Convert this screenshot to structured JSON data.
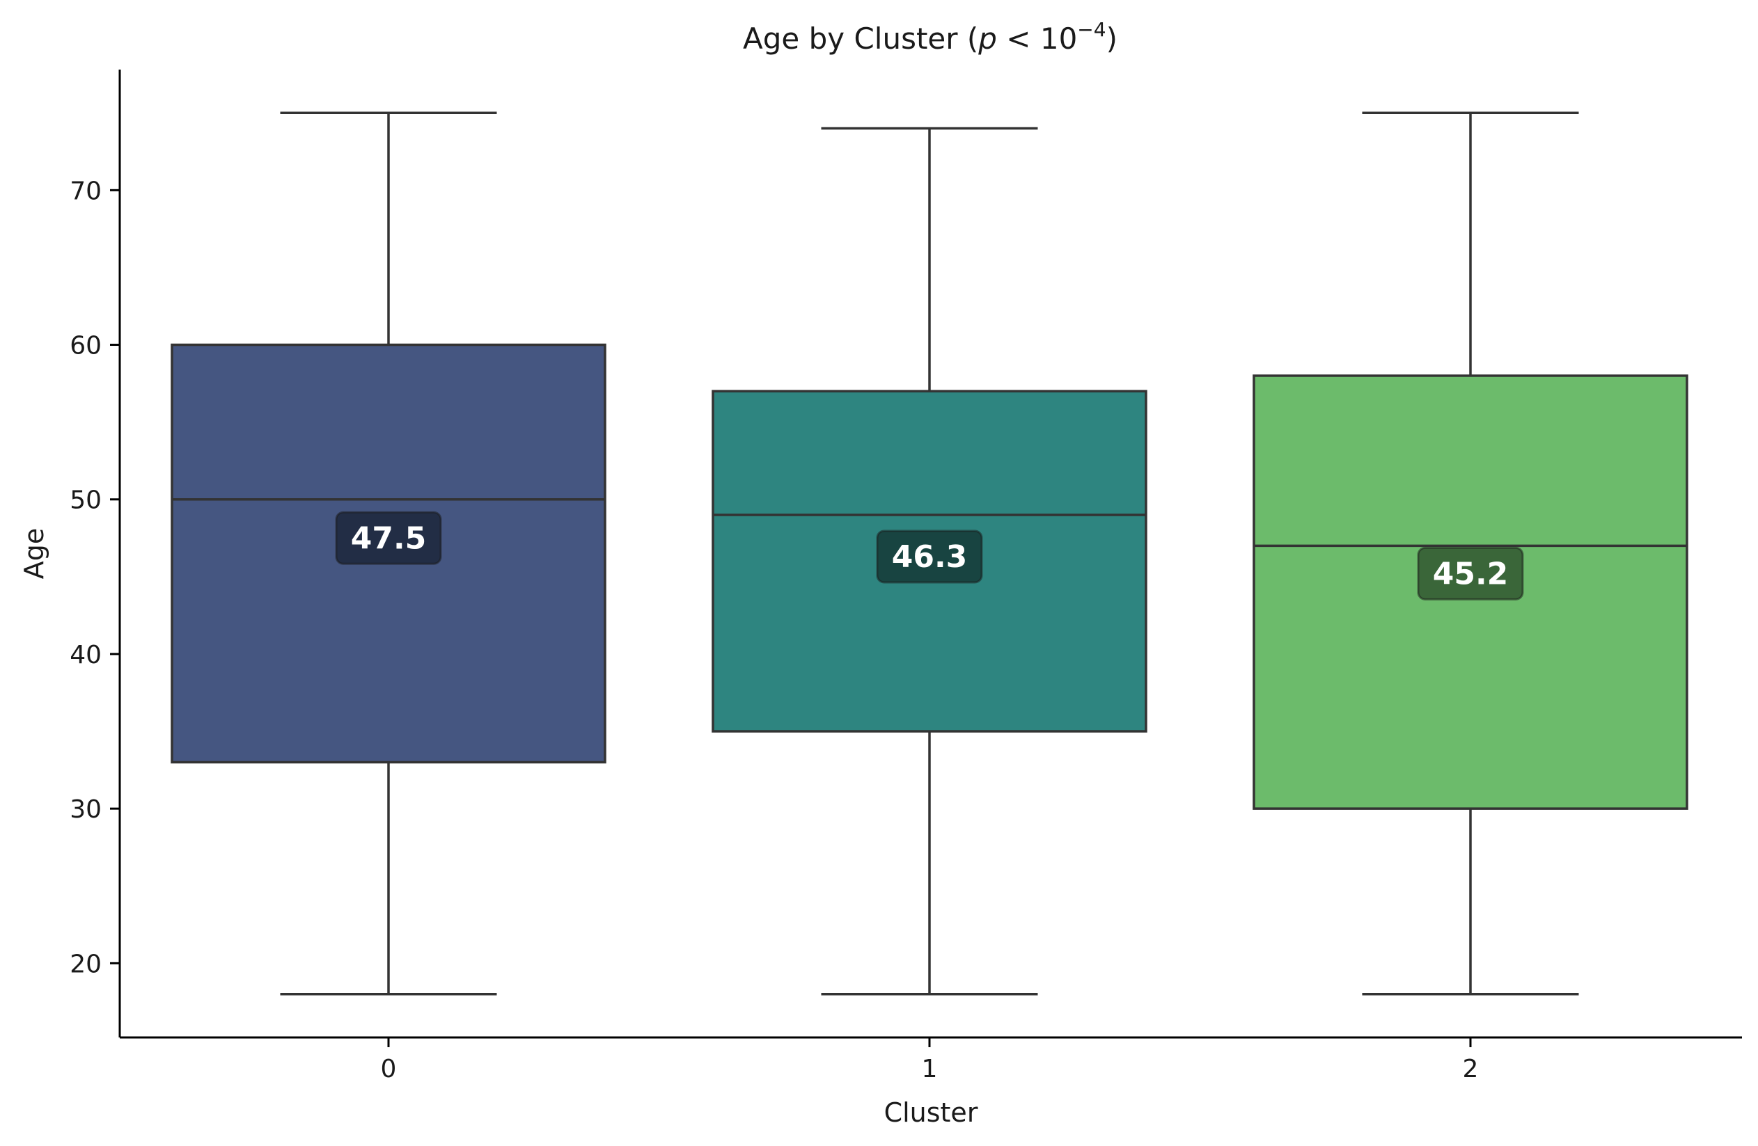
{
  "chart_data": {
    "type": "box",
    "title": {
      "prefix": "Age by Cluster (",
      "p_symbol": "p",
      "relation": " < 10",
      "exponent": "−4",
      "suffix": ")"
    },
    "xlabel": "Cluster",
    "ylabel": "Age",
    "ylim": [
      15.2,
      77.8
    ],
    "yticks": [
      20,
      30,
      40,
      50,
      60,
      70
    ],
    "categories": [
      "0",
      "1",
      "2"
    ],
    "boxes": [
      {
        "category": "0",
        "whisker_low": 18,
        "q1": 33,
        "median": 50,
        "q3": 60,
        "whisker_high": 75,
        "mean": 47.5,
        "mean_label": "47.5",
        "color": "#455681",
        "label_bg": "#1f2940"
      },
      {
        "category": "1",
        "whisker_low": 18,
        "q1": 35,
        "median": 49,
        "q3": 57,
        "whisker_high": 74,
        "mean": 46.3,
        "mean_label": "46.3",
        "color": "#2e8580",
        "label_bg": "#173f3c"
      },
      {
        "category": "2",
        "whisker_low": 18,
        "q1": 30,
        "median": 47,
        "q3": 58,
        "whisker_high": 75,
        "mean": 45.2,
        "mean_label": "45.2",
        "color": "#6cbb6b",
        "label_bg": "#365e35"
      }
    ],
    "grid": false,
    "legend": "none",
    "colors": {
      "edge": "#333333",
      "axis": "#000000"
    }
  }
}
